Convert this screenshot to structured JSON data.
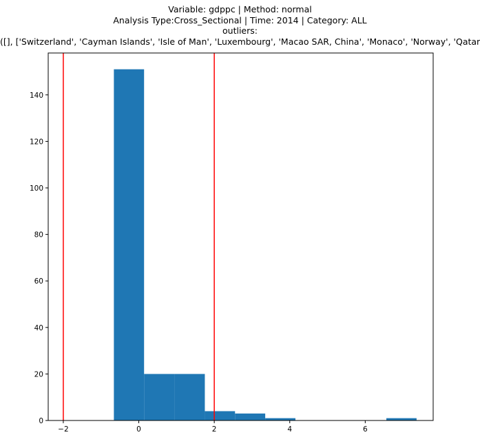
{
  "chart_data": {
    "type": "bar",
    "title_lines": [
      "Variable: gdppc | Method: normal",
      "Analysis Type:Cross_Sectional | Time: 2014 | Category: ALL",
      "outliers:",
      "([], ['Switzerland', 'Cayman Islands', 'Isle of Man', 'Luxembourg', 'Macao SAR, China', 'Monaco', 'Norway', 'Qatar'])"
    ],
    "xlabel": "",
    "ylabel": "",
    "xlim": [
      -2.4,
      7.8
    ],
    "ylim": [
      0,
      158
    ],
    "xticks": [
      -2,
      0,
      2,
      4,
      6
    ],
    "yticks": [
      0,
      20,
      40,
      60,
      80,
      100,
      120,
      140
    ],
    "bins": [
      {
        "x0": -0.66,
        "x1": 0.14,
        "count": 151
      },
      {
        "x0": 0.14,
        "x1": 0.95,
        "count": 20
      },
      {
        "x0": 0.95,
        "x1": 1.75,
        "count": 20
      },
      {
        "x0": 1.75,
        "x1": 2.55,
        "count": 4
      },
      {
        "x0": 2.55,
        "x1": 3.35,
        "count": 3
      },
      {
        "x0": 3.35,
        "x1": 4.15,
        "count": 1
      },
      {
        "x0": 4.15,
        "x1": 4.96,
        "count": 0
      },
      {
        "x0": 4.96,
        "x1": 5.76,
        "count": 0
      },
      {
        "x0": 5.76,
        "x1": 6.56,
        "count": 0
      },
      {
        "x0": 6.56,
        "x1": 7.36,
        "count": 1
      }
    ],
    "vlines": [
      -2,
      2
    ],
    "bar_color": "#1f77b4",
    "vline_color": "#ff0000",
    "grid": false
  }
}
